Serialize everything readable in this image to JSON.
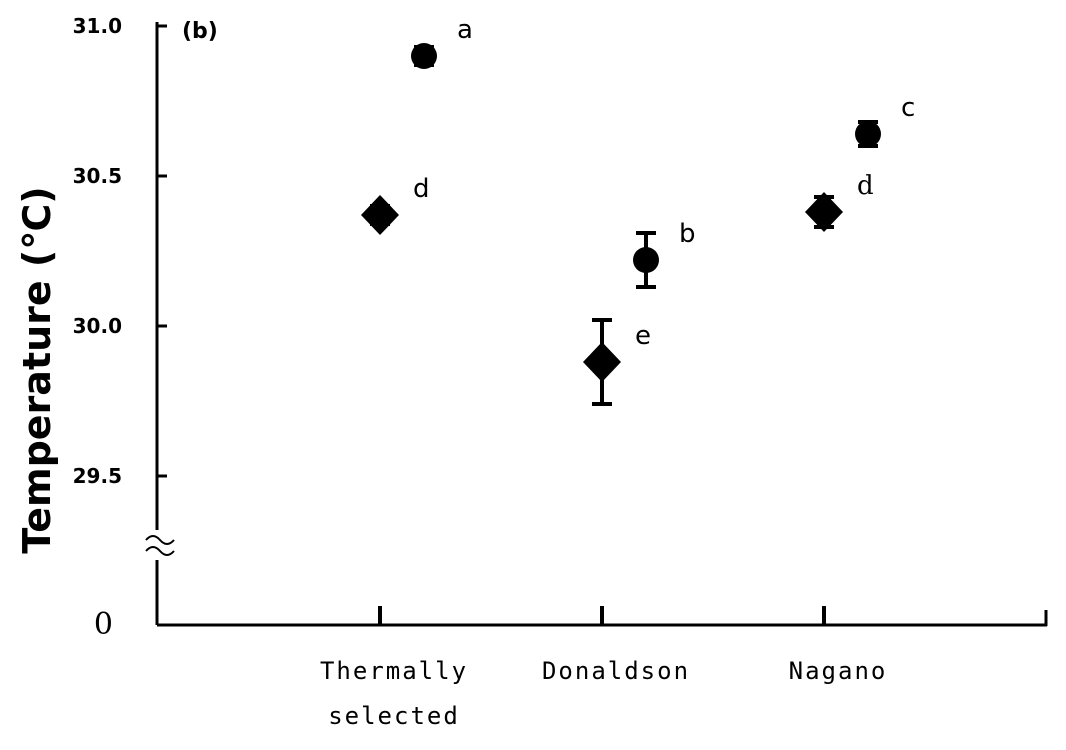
{
  "chart_data": {
    "type": "scatter",
    "panel_label": "(b)",
    "ylabel": "Temperature (℃)",
    "ylim": [
      29.2,
      31.0
    ],
    "y_ticks": [
      "29.5",
      "30.0",
      "30.5",
      "31.0"
    ],
    "y_zero_label": "0",
    "axis_break": true,
    "categories": [
      {
        "lines": [
          "Thermally",
          "selected"
        ]
      },
      {
        "lines": [
          "Donaldson"
        ]
      },
      {
        "lines": [
          "Nagano"
        ]
      }
    ],
    "series": [
      {
        "marker": "circle",
        "points": [
          {
            "category": 0,
            "y": 30.9,
            "err": 0.03,
            "label": "a"
          },
          {
            "category": 1,
            "y": 30.22,
            "err": 0.09,
            "label": "b"
          },
          {
            "category": 2,
            "y": 30.64,
            "err": 0.04,
            "label": "c"
          }
        ]
      },
      {
        "marker": "diamond",
        "points": [
          {
            "category": 0,
            "y": 30.37,
            "err": 0.03,
            "label": "d"
          },
          {
            "category": 1,
            "y": 29.88,
            "err": 0.14,
            "label": "e"
          },
          {
            "category": 2,
            "y": 30.38,
            "err": 0.05,
            "label": "d"
          }
        ]
      }
    ]
  }
}
